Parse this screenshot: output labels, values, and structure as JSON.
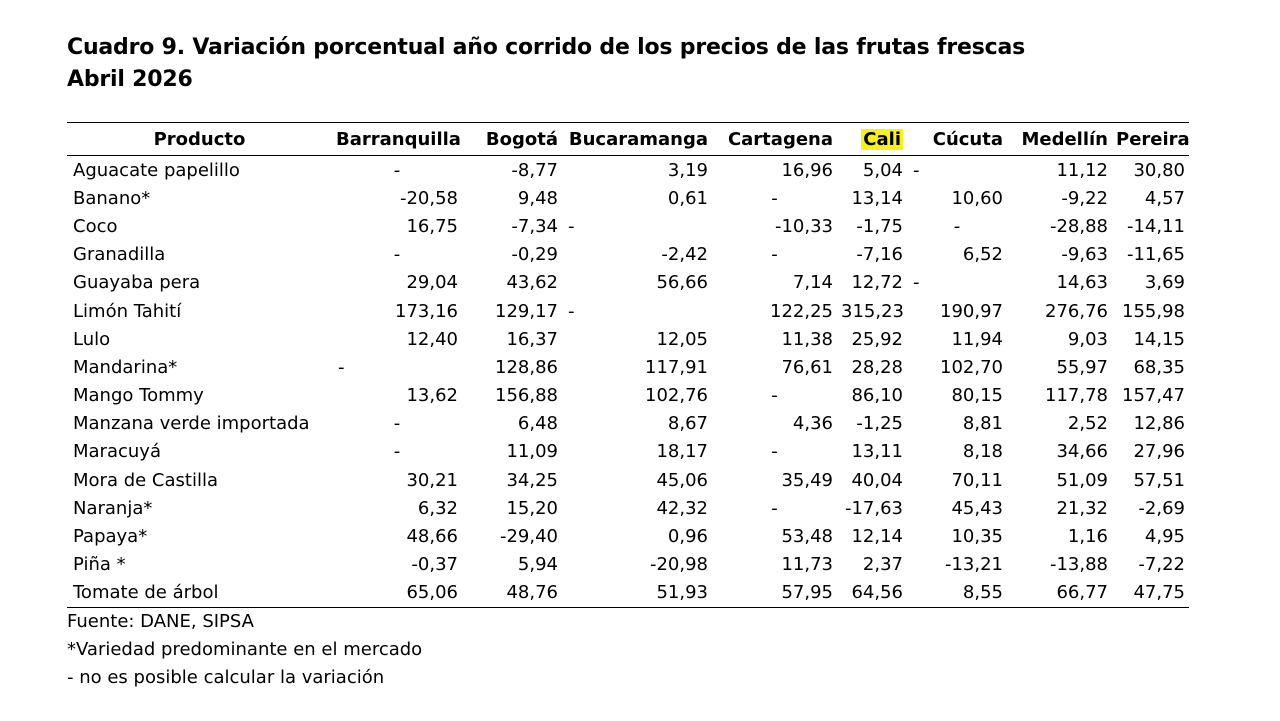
{
  "title": {
    "line1": "Cuadro 9. Variación porcentual año corrido de los precios de las frutas frescas",
    "line2": "Abril 2026"
  },
  "highlight_color": "#f7f21a",
  "table": {
    "headers": [
      "Producto",
      "Barranquilla",
      "Bogotá",
      "Bucaramanga",
      "Cartagena",
      "Cali",
      "Cúcuta",
      "Medellín",
      "Pereira"
    ],
    "rows": [
      [
        "Aguacate papelillo",
        "-",
        "-8,77",
        "3,19",
        "16,96",
        "5,04",
        "-",
        "11,12",
        "30,80"
      ],
      [
        "Banano*",
        "-20,58",
        "9,48",
        "0,61",
        "-",
        "13,14",
        "10,60",
        "-9,22",
        "4,57"
      ],
      [
        "Coco",
        "16,75",
        "-7,34",
        "-",
        "-10,33",
        "-1,75",
        "-",
        "-28,88",
        "-14,11"
      ],
      [
        "Granadilla",
        "-",
        "-0,29",
        "-2,42",
        "-",
        "-7,16",
        "6,52",
        "-9,63",
        "-11,65"
      ],
      [
        "Guayaba pera",
        "29,04",
        "43,62",
        "56,66",
        "7,14",
        "12,72",
        "-",
        "14,63",
        "3,69"
      ],
      [
        "Limón Tahití",
        "173,16",
        "129,17",
        "-",
        "122,25",
        "315,23",
        "190,97",
        "276,76",
        "155,98"
      ],
      [
        "Lulo",
        "12,40",
        "16,37",
        "12,05",
        "11,38",
        "25,92",
        "11,94",
        "9,03",
        "14,15"
      ],
      [
        "Mandarina*",
        "-",
        "128,86",
        "117,91",
        "76,61",
        "28,28",
        "102,70",
        "55,97",
        "68,35"
      ],
      [
        "Mango Tommy",
        "13,62",
        "156,88",
        "102,76",
        "-",
        "86,10",
        "80,15",
        "117,78",
        "157,47"
      ],
      [
        "Manzana verde importada",
        "-",
        "6,48",
        "8,67",
        "4,36",
        "-1,25",
        "8,81",
        "2,52",
        "12,86"
      ],
      [
        "Maracuyá",
        "-",
        "11,09",
        "18,17",
        "-",
        "13,11",
        "8,18",
        "34,66",
        "27,96"
      ],
      [
        "Mora de Castilla",
        "30,21",
        "34,25",
        "45,06",
        "35,49",
        "40,04",
        "70,11",
        "51,09",
        "57,51"
      ],
      [
        "Naranja*",
        "6,32",
        "15,20",
        "42,32",
        "-",
        "-17,63",
        "45,43",
        "21,32",
        "-2,69"
      ],
      [
        "Papaya*",
        "48,66",
        "-29,40",
        "0,96",
        "53,48",
        "12,14",
        "10,35",
        "1,16",
        "4,95"
      ],
      [
        "Piña *",
        "-0,37",
        "5,94",
        "-20,98",
        "11,73",
        "2,37",
        "-13,21",
        "-13,88",
        "-7,22"
      ],
      [
        "Tomate de árbol",
        "65,06",
        "48,76",
        "51,93",
        "57,95",
        "64,56",
        "8,55",
        "66,77",
        "47,75"
      ]
    ]
  },
  "notes": {
    "source": "Fuente: DANE, SIPSA",
    "footnote1": "*Variedad predominante en el mercado",
    "footnote2": "- no es posible calcular la variación"
  }
}
